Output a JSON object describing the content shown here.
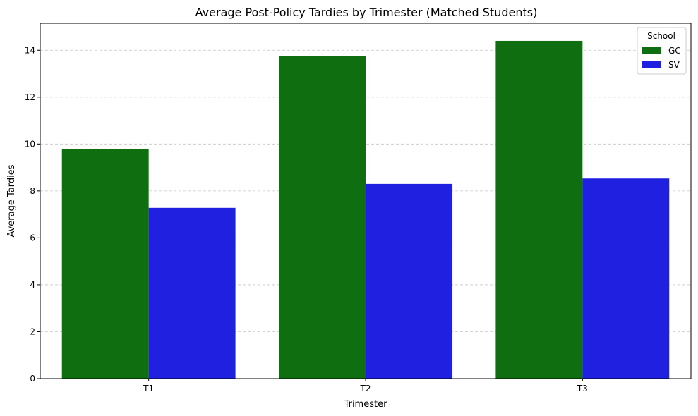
{
  "chart_data": {
    "type": "bar",
    "title": "Average Post-Policy Tardies by Trimester (Matched Students)",
    "xlabel": "Trimester",
    "ylabel": "Average Tardies",
    "categories": [
      "T1",
      "T2",
      "T3"
    ],
    "series": [
      {
        "name": "GC",
        "values": [
          9.8,
          13.75,
          14.4
        ],
        "color": "#0f6e0f"
      },
      {
        "name": "SV",
        "values": [
          7.28,
          8.3,
          8.53
        ],
        "color": "#2020e0"
      }
    ],
    "ylim": [
      0,
      15.15
    ],
    "yticks": [
      "0",
      "2",
      "4",
      "6",
      "8",
      "10",
      "12",
      "14"
    ],
    "grid": "y-dashed",
    "legend": {
      "title": "School",
      "placement": "top-right"
    }
  }
}
